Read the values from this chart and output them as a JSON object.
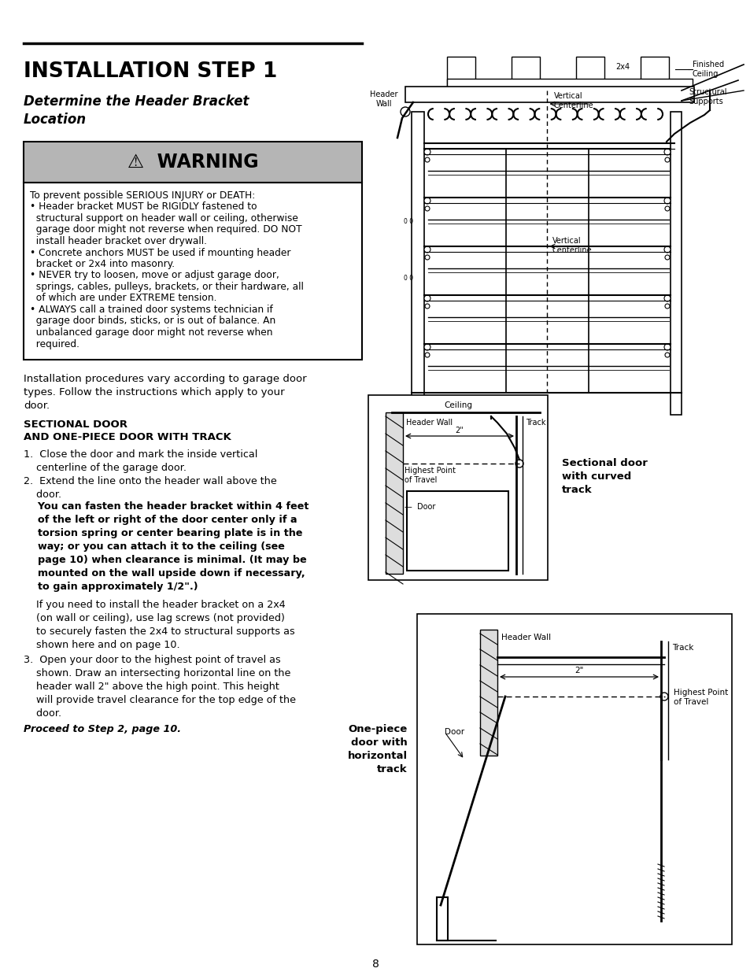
{
  "page_bg": "#ffffff",
  "title_line": "INSTALLATION STEP 1",
  "subtitle": "Determine the Header Bracket\nLocation",
  "warning_bg": "#b8b8b8",
  "warning_title": "⚠  WARNING",
  "warning_text_lines": [
    "To prevent possible SERIOUS INJURY or DEATH:",
    "• Header bracket MUST be RIGIDLY fastened to",
    "  structural support on header wall or ceiling, otherwise",
    "  garage door might not reverse when required. DO NOT",
    "  install header bracket over drywall.",
    "• Concrete anchors MUST be used if mounting header",
    "  bracket or 2x4 into masonry.",
    "• NEVER try to loosen, move or adjust garage door,",
    "  springs, cables, pulleys, brackets, or their hardware, all",
    "  of which are under EXTREME tension.",
    "• ALWAYS call a trained door systems technician if",
    "  garage door binds, sticks, or is out of balance. An",
    "  unbalanced garage door might not reverse when",
    "  required."
  ],
  "intro_text": "Installation procedures vary according to garage door\ntypes. Follow the instructions which apply to your\ndoor.",
  "section_header1": "SECTIONAL DOOR",
  "section_header2": "AND ONE-PIECE DOOR WITH TRACK",
  "step1": "1.  Close the door and mark the inside vertical\n    centerline of the garage door.",
  "step2a": "2.  Extend the line onto the header wall above the\n    door.",
  "step2b_bold": "    You can fasten the header bracket within 4 feet\n    of the left or right of the door center only if a\n    torsion spring or center bearing plate is in the\n    way; or you can attach it to the ceiling (see\n    page 10) when clearance is minimal. (It may be\n    mounted on the wall upside down if necessary,\n    to gain approximately 1/2\".)",
  "step2c": "    If you need to install the header bracket on a 2x4\n    (on wall or ceiling), use lag screws (not provided)\n    to securely fasten the 2x4 to structural supports as\n    shown here and on page 10.",
  "step3": "3.  Open your door to the highest point of travel as\n    shown. Draw an intersecting horizontal line on the\n    header wall 2\" above the high point. This height\n    will provide travel clearance for the top edge of the\n    door.",
  "proceed": "Proceed to Step 2, page 10.",
  "page_number": "8",
  "curved_door_label": "Sectional door\nwith curved\ntrack",
  "onepiece_door_label": "One-piece\ndoor with\nhorizontal\ntrack"
}
